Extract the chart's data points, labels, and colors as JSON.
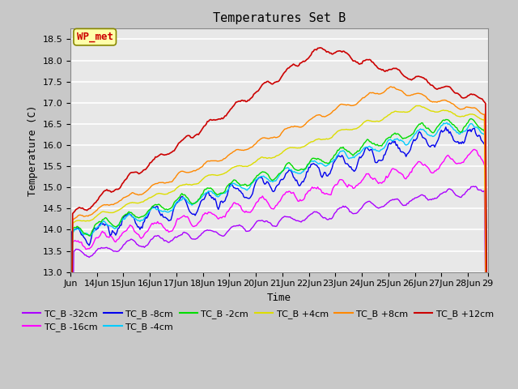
{
  "title": "Temperatures Set B",
  "xlabel": "Time",
  "ylabel": "Temperature (C)",
  "ylim": [
    13.0,
    18.75
  ],
  "y_ticks": [
    13.0,
    13.5,
    14.0,
    14.5,
    15.0,
    15.5,
    16.0,
    16.5,
    17.0,
    17.5,
    18.0,
    18.5
  ],
  "x_tick_labels": [
    "Jun",
    "14Jun",
    "15Jun",
    "16Jun",
    "17Jun",
    "18Jun",
    "19Jun",
    "20Jun",
    "21Jun",
    "22Jun",
    "23Jun",
    "24Jun",
    "25Jun",
    "26Jun",
    "27Jun",
    "28Jun",
    "29"
  ],
  "x_tick_positions": [
    0,
    24,
    48,
    72,
    96,
    120,
    144,
    168,
    192,
    216,
    240,
    264,
    288,
    312,
    336,
    360,
    378
  ],
  "series": {
    "TC_B -32cm": {
      "color": "#aa00ff",
      "lw": 1.0
    },
    "TC_B -16cm": {
      "color": "#ff00ff",
      "lw": 1.0
    },
    "TC_B -8cm": {
      "color": "#0000ee",
      "lw": 1.0
    },
    "TC_B -4cm": {
      "color": "#00ccff",
      "lw": 1.0
    },
    "TC_B -2cm": {
      "color": "#00dd00",
      "lw": 1.0
    },
    "TC_B +4cm": {
      "color": "#dddd00",
      "lw": 1.0
    },
    "TC_B +8cm": {
      "color": "#ff8800",
      "lw": 1.0
    },
    "TC_B +12cm": {
      "color": "#cc0000",
      "lw": 1.2
    }
  },
  "wp_met_label": "WP_met",
  "wp_met_color": "#cc0000",
  "wp_met_bg": "#ffffaa",
  "fig_bg": "#c8c8c8",
  "plot_bg": "#e8e8e8",
  "grid_color": "#ffffff",
  "title_fontsize": 11,
  "axis_fontsize": 9,
  "tick_fontsize": 8,
  "legend_fontsize": 8
}
